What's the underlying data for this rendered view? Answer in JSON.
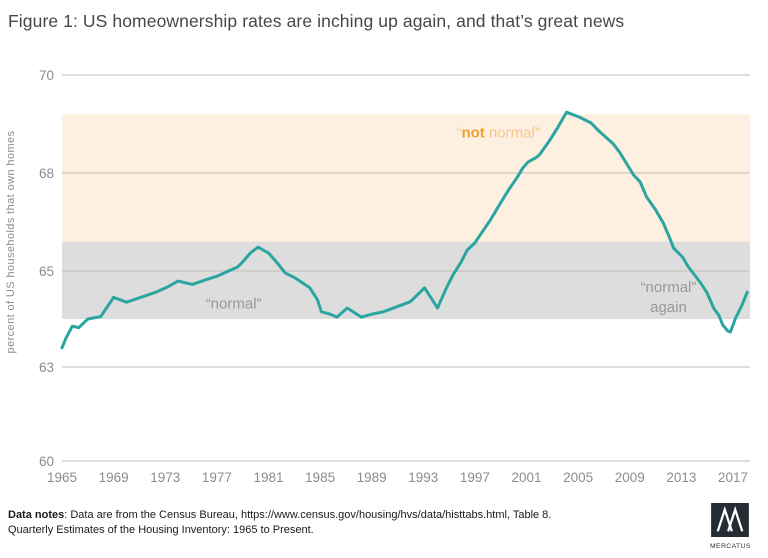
{
  "header": {
    "title": "Figure 1: US homeownership rates are inching up again, and that’s great news"
  },
  "chart_data": {
    "type": "line",
    "title": "Figure 1: US homeownership rates are inching up again, and that’s great news",
    "xlabel": "",
    "ylabel": "percent of US households that own homes",
    "x_ticks": [
      1965,
      1969,
      1973,
      1977,
      1981,
      1985,
      1989,
      1993,
      1997,
      2001,
      2005,
      2009,
      2013,
      2017
    ],
    "y_ticks": [
      70,
      68,
      65,
      63,
      60
    ],
    "y_axis_note": "tick labels 60,63,65,68,70 are evenly spaced (non-linear axis as printed)",
    "grid": true,
    "legend": "none",
    "bands": [
      {
        "name": "not-normal-band",
        "from": 65.9,
        "to": 69.2,
        "color": "#fdf0e0",
        "label": {
          "prefix": "“",
          "bold": "not",
          "rest": " normal”",
          "year": 1998.8,
          "value": 68.72
        }
      },
      {
        "name": "normal-band",
        "from": 64.0,
        "to": 65.9,
        "color": "#dddddd"
      }
    ],
    "annotations": [
      {
        "name": "normal-label",
        "lines": [
          "“normal”"
        ],
        "year": 1978.3,
        "value": 64.22
      },
      {
        "name": "normal-again-label",
        "lines": [
          "“normal”",
          "again"
        ],
        "year": 2012.0,
        "value": 64.56
      }
    ],
    "series": [
      {
        "name": "US homeownership rate",
        "points": [
          [
            1965.0,
            63.4
          ],
          [
            1965.3,
            63.6
          ],
          [
            1965.8,
            63.85
          ],
          [
            1966.3,
            63.82
          ],
          [
            1967.0,
            64.0
          ],
          [
            1968.0,
            64.05
          ],
          [
            1969.0,
            64.45
          ],
          [
            1970.0,
            64.35
          ],
          [
            1971.2,
            64.46
          ],
          [
            1972.3,
            64.56
          ],
          [
            1973.2,
            64.67
          ],
          [
            1974.0,
            64.79
          ],
          [
            1975.1,
            64.72
          ],
          [
            1976.2,
            64.82
          ],
          [
            1977.1,
            64.9
          ],
          [
            1977.9,
            65.0
          ],
          [
            1978.6,
            65.12
          ],
          [
            1979.0,
            65.28
          ],
          [
            1979.6,
            65.55
          ],
          [
            1980.2,
            65.73
          ],
          [
            1981.0,
            65.55
          ],
          [
            1981.7,
            65.24
          ],
          [
            1982.3,
            64.96
          ],
          [
            1983.1,
            64.85
          ],
          [
            1984.2,
            64.65
          ],
          [
            1984.8,
            64.4
          ],
          [
            1985.1,
            64.15
          ],
          [
            1985.8,
            64.1
          ],
          [
            1986.3,
            64.04
          ],
          [
            1987.1,
            64.23
          ],
          [
            1988.2,
            64.04
          ],
          [
            1989.0,
            64.1
          ],
          [
            1989.9,
            64.15
          ],
          [
            1990.9,
            64.25
          ],
          [
            1992.0,
            64.36
          ],
          [
            1993.1,
            64.65
          ],
          [
            1994.1,
            64.23
          ],
          [
            1994.8,
            64.65
          ],
          [
            1995.3,
            64.92
          ],
          [
            1995.9,
            65.25
          ],
          [
            1996.4,
            65.64
          ],
          [
            1997.0,
            65.86
          ],
          [
            1997.4,
            66.1
          ],
          [
            1998.2,
            66.56
          ],
          [
            1998.8,
            66.96
          ],
          [
            1999.6,
            67.48
          ],
          [
            2000.3,
            67.88
          ],
          [
            2000.7,
            68.1
          ],
          [
            2001.1,
            68.22
          ],
          [
            2001.7,
            68.31
          ],
          [
            2002.0,
            68.37
          ],
          [
            2002.8,
            68.67
          ],
          [
            2003.4,
            68.92
          ],
          [
            2004.1,
            69.24
          ],
          [
            2004.5,
            69.2
          ],
          [
            2005.1,
            69.14
          ],
          [
            2006.0,
            69.02
          ],
          [
            2006.6,
            68.86
          ],
          [
            2007.7,
            68.6
          ],
          [
            2008.2,
            68.43
          ],
          [
            2009.3,
            67.94
          ],
          [
            2009.8,
            67.73
          ],
          [
            2010.3,
            67.27
          ],
          [
            2011.0,
            66.87
          ],
          [
            2011.6,
            66.47
          ],
          [
            2012.1,
            66.0
          ],
          [
            2012.4,
            65.7
          ],
          [
            2013.1,
            65.42
          ],
          [
            2013.5,
            65.15
          ],
          [
            2013.9,
            64.96
          ],
          [
            2014.5,
            64.75
          ],
          [
            2015.0,
            64.54
          ],
          [
            2015.5,
            64.23
          ],
          [
            2015.9,
            64.08
          ],
          [
            2016.2,
            63.88
          ],
          [
            2016.6,
            63.75
          ],
          [
            2016.8,
            63.73
          ],
          [
            2017.2,
            64.02
          ],
          [
            2017.7,
            64.29
          ],
          [
            2018.1,
            64.56
          ]
        ]
      }
    ]
  },
  "colors": {
    "line": "#2aa5a0",
    "band_not_normal": "#fdf0e0",
    "band_normal": "#dddddd",
    "annotation_orange_bold": "#efa12f",
    "annotation_orange": "#f5c68e",
    "annotation_gray": "#999999",
    "grid": "#c3beb5",
    "axis_text": "#8c8c8c",
    "title_text": "#474747",
    "logo_bg": "#262c34"
  },
  "footer": {
    "notes_label": "Data notes",
    "notes_rest": ": Data are from the Census Bureau, https://www.census.gov/housing/hvs/data/histtabs.html, Table 8. Quarterly Estimates of the Housing Inventory: 1965 to Present.",
    "logo_text": "MERCATUS"
  }
}
